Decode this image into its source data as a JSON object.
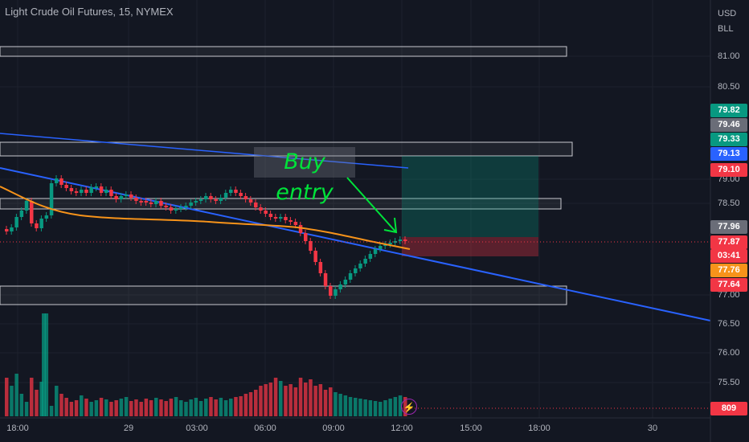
{
  "header": {
    "title": "Light Crude Oil Futures, 15, NYMEX"
  },
  "scale": {
    "currency": "USD",
    "unit": "BLL"
  },
  "price_ticks": [
    "81.00",
    "80.50",
    "79.00",
    "78.50",
    "77.00",
    "76.50",
    "76.00",
    "75.50"
  ],
  "badges": [
    {
      "label": "79.82",
      "color": "#089981"
    },
    {
      "label": "79.46",
      "color": "#6a6d78"
    },
    {
      "label": "79.33",
      "color": "#089981"
    },
    {
      "label": "79.13",
      "color": "#2962ff"
    },
    {
      "label": "79.10",
      "color": "#f23645"
    },
    {
      "label": "77.96",
      "color": "#6a6d78"
    },
    {
      "label": "77.87",
      "color": "#f23645"
    },
    {
      "label": "03:41",
      "color": "#f23645"
    },
    {
      "label": "77.76",
      "color": "#f7931a"
    },
    {
      "label": "77.64",
      "color": "#f23645"
    },
    {
      "label": "809",
      "color": "#f23645"
    }
  ],
  "time_ticks": [
    "18:00",
    "29",
    "03:00",
    "06:00",
    "09:00",
    "12:00",
    "15:00",
    "18:00",
    "30"
  ],
  "annotation": {
    "text": "Buy entry",
    "color": "#00e33a"
  },
  "icons": {
    "alert": "lightning-icon"
  },
  "colors": {
    "up": "#089981",
    "down": "#f23645",
    "ma": "#f7931a",
    "trendline": "#2962ff",
    "background": "#131722"
  }
}
